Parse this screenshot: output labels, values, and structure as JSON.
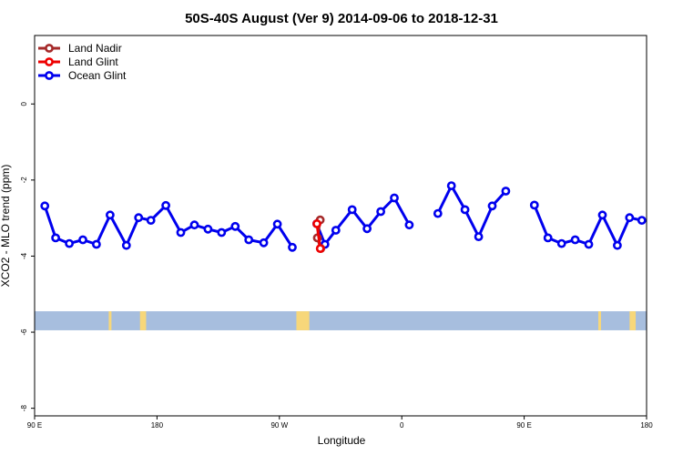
{
  "chart_data": {
    "type": "line",
    "title": "50S-40S August (Ver 9)   2014-09-06 to 2018-12-31",
    "xlabel": "Longitude",
    "ylabel": "XCO2 - MLO trend (ppm)",
    "xlim": [
      90,
      540
    ],
    "ylim": [
      -8.2,
      1.8
    ],
    "x_ticks": [
      {
        "value": 90,
        "label": "90 E"
      },
      {
        "value": 180,
        "label": "180"
      },
      {
        "value": 270,
        "label": "90 W"
      },
      {
        "value": 360,
        "label": "0"
      },
      {
        "value": 450,
        "label": "90 E"
      },
      {
        "value": 540,
        "label": "180"
      }
    ],
    "y_ticks": [
      {
        "value": 0,
        "label": "0"
      },
      {
        "value": -2,
        "label": "-2"
      },
      {
        "value": -4,
        "label": "-4"
      },
      {
        "value": -6,
        "label": "-6"
      },
      {
        "value": -8,
        "label": "-8"
      }
    ],
    "series": [
      {
        "name": "Land Nadir",
        "color": "#a52a2a",
        "segments": [
          [
            [
              300.0,
              -3.05
            ],
            [
              297.9,
              -3.52
            ],
            [
              300.4,
              -3.8
            ]
          ]
        ]
      },
      {
        "name": "Land Glint",
        "color": "#ee0000",
        "segments": [
          [
            [
              297.6,
              -3.15
            ],
            [
              300.1,
              -3.8
            ]
          ]
        ]
      },
      {
        "name": "Ocean Glint",
        "color": "#0000ee",
        "segments": [
          [
            [
              97.5,
              -2.68
            ],
            [
              105.5,
              -3.52
            ],
            [
              115.5,
              -3.67
            ],
            [
              125.5,
              -3.57
            ],
            [
              135.5,
              -3.69
            ],
            [
              145.5,
              -2.92
            ],
            [
              157.5,
              -3.72
            ],
            [
              166.5,
              -2.99
            ],
            [
              175.5,
              -3.06
            ],
            [
              186.5,
              -2.67
            ],
            [
              197.5,
              -3.38
            ],
            [
              207.5,
              -3.18
            ],
            [
              217.5,
              -3.29
            ],
            [
              227.5,
              -3.38
            ],
            [
              237.5,
              -3.22
            ],
            [
              247.5,
              -3.57
            ],
            [
              258.5,
              -3.65
            ],
            [
              268.5,
              -3.16
            ],
            [
              279.5,
              -3.77
            ]
          ],
          [
            [
              297.5,
              -3.15
            ],
            [
              303.5,
              -3.69
            ],
            [
              311.5,
              -3.32
            ],
            [
              323.5,
              -2.78
            ],
            [
              334.5,
              -3.28
            ],
            [
              344.5,
              -2.83
            ],
            [
              354.5,
              -2.47
            ],
            [
              365.5,
              -3.18
            ]
          ],
          [
            [
              386.5,
              -2.88
            ],
            [
              396.5,
              -2.15
            ],
            [
              406.5,
              -2.78
            ],
            [
              416.5,
              -3.49
            ],
            [
              426.5,
              -2.68
            ],
            [
              436.5,
              -2.29
            ]
          ],
          [
            [
              457.5,
              -2.66
            ],
            [
              467.5,
              -3.52
            ],
            [
              477.5,
              -3.67
            ],
            [
              487.5,
              -3.57
            ],
            [
              497.5,
              -3.69
            ],
            [
              507.5,
              -2.92
            ],
            [
              518.5,
              -3.72
            ],
            [
              527.5,
              -2.99
            ],
            [
              536.5,
              -3.06
            ]
          ]
        ]
      }
    ],
    "legend": {
      "location": "top-left"
    },
    "band": {
      "ymin": -5.95,
      "ymax": -5.45,
      "color": "#a7bede",
      "land_color": "#f7d77a"
    },
    "land_patches": [
      {
        "xmin": 144.5,
        "xmax": 146.5
      },
      {
        "xmin": 167.5,
        "xmax": 172.0
      },
      {
        "xmin": 282.5,
        "xmax": 292.0
      },
      {
        "xmin": 504.5,
        "xmax": 506.5
      },
      {
        "xmin": 527.5,
        "xmax": 532.0
      }
    ]
  }
}
